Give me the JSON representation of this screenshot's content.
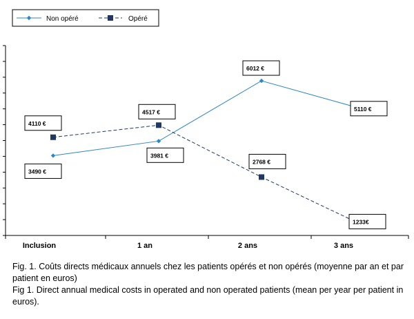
{
  "chart_data": {
    "type": "line",
    "categories": [
      "Inclusion",
      "1 an",
      "2 ans",
      "3 ans"
    ],
    "series": [
      {
        "name": "Non opéré",
        "values": [
          3490,
          3981,
          6012,
          5110
        ],
        "labels": [
          "3490 €",
          "3981 €",
          "6012 €",
          "5110 €"
        ],
        "color": "#2E86C8",
        "line_style": "solid",
        "marker": "diamond"
      },
      {
        "name": "Opéré",
        "values": [
          4110,
          4517,
          2768,
          1233
        ],
        "labels": [
          "4110 €",
          "4517 €",
          "2768 €",
          "1233€"
        ],
        "color": "#1F3864",
        "line_style": "dashed",
        "marker": "square"
      }
    ],
    "title": "",
    "xlabel": "",
    "ylabel": "",
    "ylim": [
      800,
      7200
    ],
    "legend_position": "top-left",
    "grid": false
  },
  "caption": {
    "french": "Fig. 1. Coûts directs médicaux annuels chez les patients opérés et non opérés (moyenne par an et par patient en euros)",
    "english": "Fig 1. Direct annual medical costs in operated and non operated patients (mean per year per patient in euros)."
  }
}
